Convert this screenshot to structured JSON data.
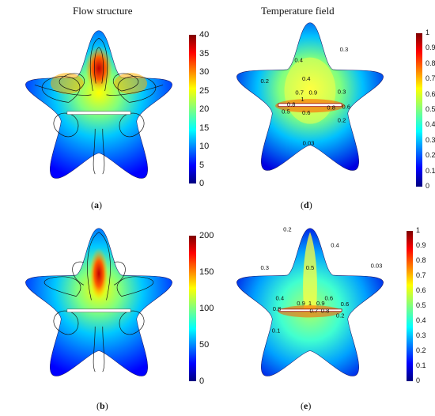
{
  "titles": {
    "flow": "Flow structure",
    "temp": "Temperature field"
  },
  "labels": {
    "a": "a",
    "b": "b",
    "d": "d",
    "e": "e"
  },
  "colorbars": {
    "a": [
      "40",
      "35",
      "30",
      "25",
      "20",
      "15",
      "10",
      "5",
      "0"
    ],
    "b": [
      "200",
      "150",
      "100",
      "50",
      "0"
    ],
    "d": [
      "1",
      "0.9",
      "0.8",
      "0.7",
      "0.6",
      "0.5",
      "0.4",
      "0.3",
      "0.2",
      "0.1",
      "0"
    ],
    "e": [
      "1",
      "0.9",
      "0.8",
      "0.7",
      "0.6",
      "0.5",
      "0.4",
      "0.3",
      "0.2",
      "0.1",
      "0"
    ]
  },
  "isotherms": {
    "d": [
      "0.3",
      "0.4",
      "0.2",
      "0.4",
      "0.7",
      "0.9",
      "0.3",
      "1",
      "0.8",
      "0.8",
      "0.6",
      "0.5",
      "0.6",
      "0.2",
      "0.03"
    ],
    "e": [
      "0.2",
      "0.4",
      "0.3",
      "0.5",
      "0.03",
      "0.4",
      "0.6",
      "0.9",
      "1",
      "0.9",
      "0.6",
      "0.8",
      "0.7",
      "0.8",
      "0.2",
      "0.1"
    ]
  },
  "colors": {
    "jet": [
      "#00007f",
      "#0000ff",
      "#007fff",
      "#00ffff",
      "#7fff7f",
      "#ffff00",
      "#ff7f00",
      "#ff0000",
      "#7f0000"
    ]
  }
}
